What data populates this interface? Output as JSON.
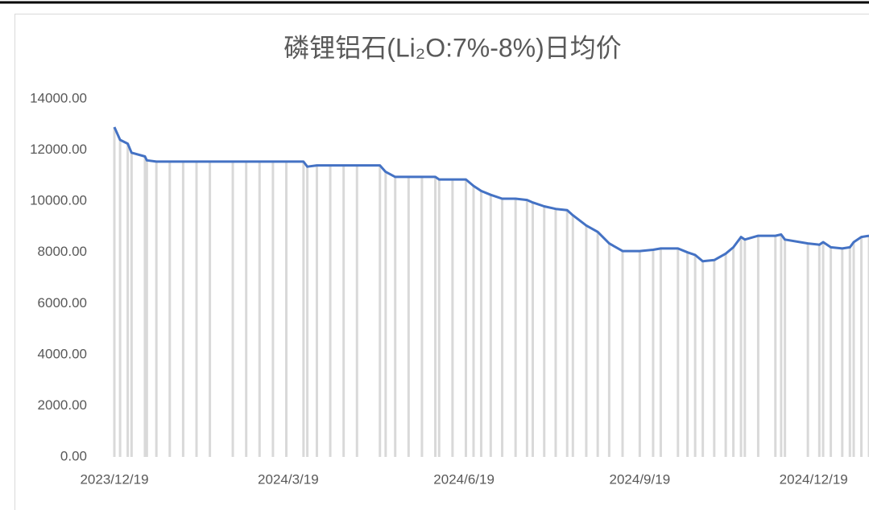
{
  "chart_data": {
    "type": "line",
    "title": "磷锂铝石(Li₂O:7%-8%)日均价",
    "color": "#4472c4",
    "bar_color": "#d9d9d9",
    "x": [
      "2023/12/19",
      "2023/12/22",
      "2023/12/26",
      "2023/12/28",
      "2024/01/04",
      "2024/01/05",
      "2024/01/10",
      "2024/01/17",
      "2024/01/24",
      "2024/01/31",
      "2024/02/07",
      "2024/02/19",
      "2024/02/26",
      "2024/03/04",
      "2024/03/11",
      "2024/03/18",
      "2024/03/27",
      "2024/03/29",
      "2024/04/03",
      "2024/04/10",
      "2024/04/17",
      "2024/04/24",
      "2024/05/06",
      "2024/05/09",
      "2024/05/14",
      "2024/05/21",
      "2024/05/28",
      "2024/06/04",
      "2024/06/06",
      "2024/06/13",
      "2024/06/20",
      "2024/06/24",
      "2024/06/28",
      "2024/07/03",
      "2024/07/09",
      "2024/07/16",
      "2024/07/22",
      "2024/07/25",
      "2024/07/31",
      "2024/08/06",
      "2024/08/12",
      "2024/08/15",
      "2024/08/22",
      "2024/08/28",
      "2024/09/03",
      "2024/09/10",
      "2024/09/19",
      "2024/09/26",
      "2024/09/30",
      "2024/10/09",
      "2024/10/14",
      "2024/10/18",
      "2024/10/22",
      "2024/10/28",
      "2024/11/03",
      "2024/11/07",
      "2024/11/11",
      "2024/11/13",
      "2024/11/20",
      "2024/11/29",
      "2024/12/02",
      "2024/12/04",
      "2024/12/16",
      "2024/12/22",
      "2024/12/24",
      "2024/12/28",
      "2025/01/03",
      "2025/01/07",
      "2025/01/09",
      "2025/01/13",
      "2025/01/17"
    ],
    "values": [
      12900,
      12400,
      12250,
      11900,
      11750,
      11600,
      11550,
      11550,
      11550,
      11550,
      11550,
      11550,
      11550,
      11550,
      11550,
      11550,
      11550,
      11350,
      11400,
      11400,
      11400,
      11400,
      11400,
      11150,
      10950,
      10950,
      10950,
      10950,
      10850,
      10850,
      10850,
      10600,
      10400,
      10250,
      10100,
      10100,
      10050,
      9950,
      9800,
      9700,
      9650,
      9450,
      9050,
      8800,
      8350,
      8050,
      8050,
      8100,
      8150,
      8150,
      8000,
      7900,
      7650,
      7700,
      7950,
      8200,
      8600,
      8500,
      8650,
      8650,
      8700,
      8500,
      8350,
      8300,
      8400,
      8200,
      8150,
      8200,
      8400,
      8600,
      8650
    ],
    "xlim": [
      "2023/12/19",
      "2025/01/17"
    ],
    "xticks": [
      "2023/12/19",
      "2024/3/19",
      "2024/6/19",
      "2024/9/19",
      "2024/12/19"
    ],
    "ylim": [
      0,
      14000
    ],
    "yticks": [
      {
        "value": 0,
        "label": "0.00"
      },
      {
        "value": 2000,
        "label": "2000.00"
      },
      {
        "value": 4000,
        "label": "4000.00"
      },
      {
        "value": 6000,
        "label": "6000.00"
      },
      {
        "value": 8000,
        "label": "8000.00"
      },
      {
        "value": 10000,
        "label": "10000.00"
      },
      {
        "value": 12000,
        "label": "12000.00"
      },
      {
        "value": 14000,
        "label": "14000.00"
      }
    ],
    "grid": false
  }
}
